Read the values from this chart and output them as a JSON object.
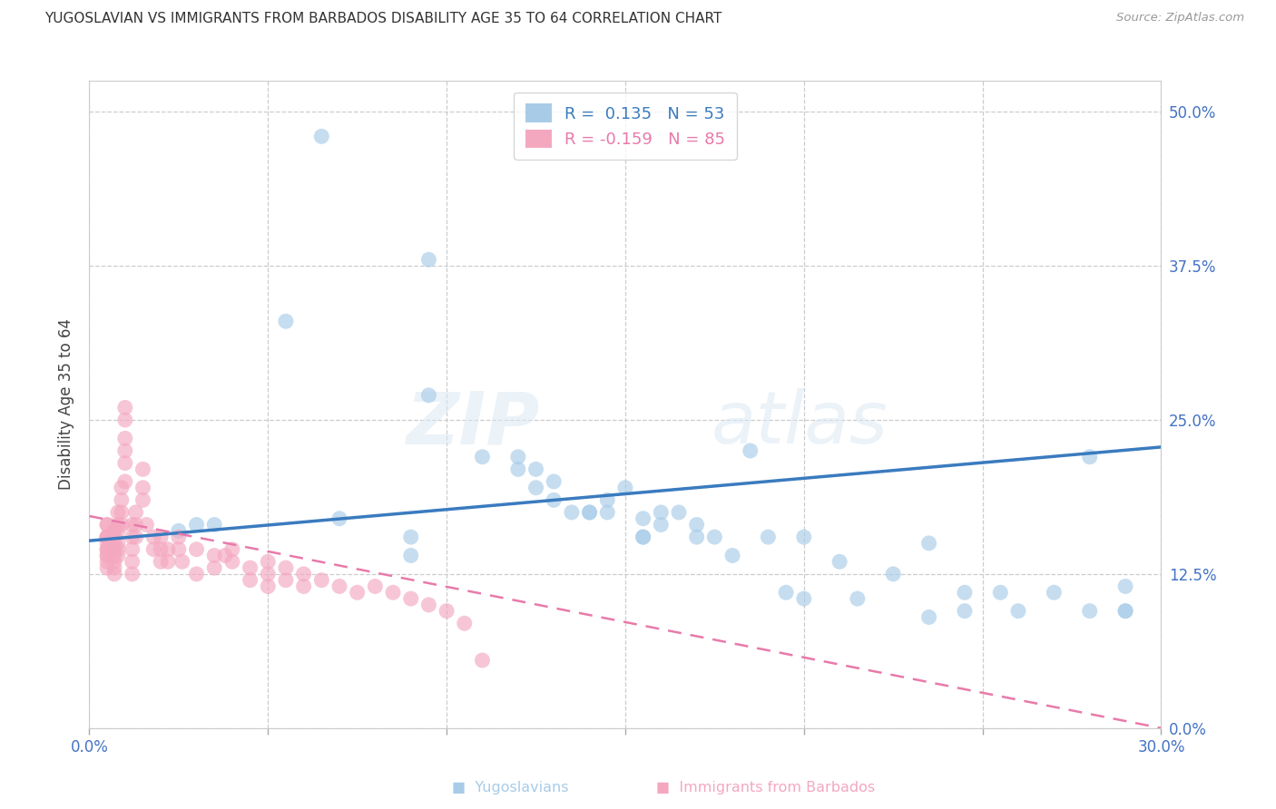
{
  "title": "YUGOSLAVIAN VS IMMIGRANTS FROM BARBADOS DISABILITY AGE 35 TO 64 CORRELATION CHART",
  "source": "Source: ZipAtlas.com",
  "xlabel_values": [
    0.0,
    0.05,
    0.1,
    0.15,
    0.2,
    0.25,
    0.3
  ],
  "ylabel_values": [
    0.0,
    0.125,
    0.25,
    0.375,
    0.5
  ],
  "xlim": [
    0.0,
    0.3
  ],
  "ylim": [
    0.0,
    0.525
  ],
  "blue_color": "#a8cce8",
  "pink_color": "#f4a8c0",
  "blue_line_color": "#3a7bbf",
  "pink_line_color": "#e87aaa",
  "ylabel": "Disability Age 35 to 64",
  "watermark_zip": "ZIP",
  "watermark_atlas": "atlas",
  "blue_scatter_x": [
    0.065,
    0.055,
    0.095,
    0.095,
    0.11,
    0.12,
    0.12,
    0.125,
    0.125,
    0.13,
    0.13,
    0.135,
    0.14,
    0.14,
    0.145,
    0.15,
    0.155,
    0.155,
    0.16,
    0.16,
    0.165,
    0.17,
    0.17,
    0.175,
    0.18,
    0.19,
    0.195,
    0.2,
    0.2,
    0.21,
    0.215,
    0.225,
    0.235,
    0.245,
    0.245,
    0.255,
    0.26,
    0.27,
    0.28,
    0.28,
    0.29,
    0.29,
    0.29,
    0.025,
    0.03,
    0.035,
    0.07,
    0.09,
    0.09,
    0.145,
    0.155,
    0.185,
    0.235
  ],
  "blue_scatter_y": [
    0.48,
    0.33,
    0.38,
    0.27,
    0.22,
    0.21,
    0.22,
    0.21,
    0.195,
    0.2,
    0.185,
    0.175,
    0.175,
    0.175,
    0.185,
    0.195,
    0.155,
    0.17,
    0.175,
    0.165,
    0.175,
    0.165,
    0.155,
    0.155,
    0.14,
    0.155,
    0.11,
    0.105,
    0.155,
    0.135,
    0.105,
    0.125,
    0.09,
    0.095,
    0.11,
    0.11,
    0.095,
    0.11,
    0.095,
    0.22,
    0.095,
    0.115,
    0.095,
    0.16,
    0.165,
    0.165,
    0.17,
    0.155,
    0.14,
    0.175,
    0.155,
    0.225,
    0.15
  ],
  "pink_scatter_x": [
    0.005,
    0.005,
    0.005,
    0.005,
    0.005,
    0.005,
    0.005,
    0.005,
    0.005,
    0.005,
    0.005,
    0.005,
    0.005,
    0.007,
    0.007,
    0.007,
    0.007,
    0.007,
    0.007,
    0.007,
    0.007,
    0.008,
    0.008,
    0.008,
    0.008,
    0.008,
    0.008,
    0.009,
    0.009,
    0.009,
    0.009,
    0.01,
    0.01,
    0.01,
    0.01,
    0.01,
    0.01,
    0.012,
    0.012,
    0.012,
    0.012,
    0.012,
    0.013,
    0.013,
    0.013,
    0.015,
    0.015,
    0.015,
    0.016,
    0.018,
    0.018,
    0.02,
    0.02,
    0.02,
    0.022,
    0.022,
    0.025,
    0.025,
    0.026,
    0.03,
    0.03,
    0.035,
    0.035,
    0.038,
    0.04,
    0.04,
    0.045,
    0.045,
    0.05,
    0.05,
    0.05,
    0.055,
    0.055,
    0.06,
    0.06,
    0.065,
    0.07,
    0.075,
    0.08,
    0.085,
    0.09,
    0.095,
    0.1,
    0.105,
    0.11
  ],
  "pink_scatter_y": [
    0.165,
    0.165,
    0.155,
    0.155,
    0.15,
    0.145,
    0.145,
    0.155,
    0.155,
    0.14,
    0.14,
    0.135,
    0.13,
    0.16,
    0.155,
    0.15,
    0.145,
    0.14,
    0.135,
    0.13,
    0.125,
    0.175,
    0.165,
    0.16,
    0.15,
    0.145,
    0.14,
    0.195,
    0.185,
    0.175,
    0.165,
    0.26,
    0.25,
    0.235,
    0.225,
    0.215,
    0.2,
    0.165,
    0.155,
    0.145,
    0.135,
    0.125,
    0.175,
    0.165,
    0.155,
    0.21,
    0.195,
    0.185,
    0.165,
    0.155,
    0.145,
    0.155,
    0.145,
    0.135,
    0.145,
    0.135,
    0.155,
    0.145,
    0.135,
    0.145,
    0.125,
    0.14,
    0.13,
    0.14,
    0.145,
    0.135,
    0.13,
    0.12,
    0.135,
    0.125,
    0.115,
    0.13,
    0.12,
    0.125,
    0.115,
    0.12,
    0.115,
    0.11,
    0.115,
    0.11,
    0.105,
    0.1,
    0.095,
    0.085,
    0.055
  ],
  "blue_line_x": [
    0.0,
    0.3
  ],
  "blue_line_y_start": 0.152,
  "blue_line_y_end": 0.228,
  "pink_line_x": [
    0.0,
    0.3
  ],
  "pink_line_y_start": 0.172,
  "pink_line_y_end": 0.0,
  "grid_color": "#cccccc",
  "background_color": "#ffffff",
  "title_color": "#333333",
  "axis_tick_color": "#4472c4",
  "source_color": "#999999",
  "legend_blue_text": "R =  0.135   N = 53",
  "legend_pink_text": "R = -0.159   N = 85",
  "bottom_label_blue": "Yugoslavians",
  "bottom_label_pink": "Immigrants from Barbados"
}
